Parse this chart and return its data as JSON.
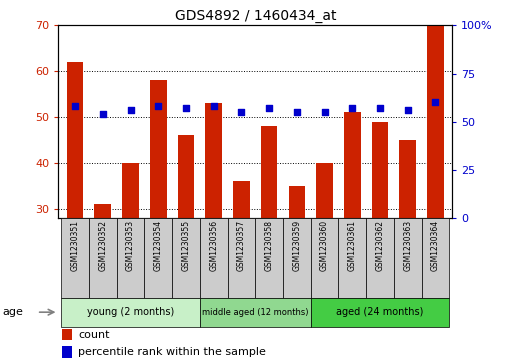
{
  "title": "GDS4892 / 1460434_at",
  "samples": [
    "GSM1230351",
    "GSM1230352",
    "GSM1230353",
    "GSM1230354",
    "GSM1230355",
    "GSM1230356",
    "GSM1230357",
    "GSM1230358",
    "GSM1230359",
    "GSM1230360",
    "GSM1230361",
    "GSM1230362",
    "GSM1230363",
    "GSM1230364"
  ],
  "counts": [
    62,
    31,
    40,
    58,
    46,
    53,
    36,
    48,
    35,
    40,
    51,
    49,
    45,
    70
  ],
  "percentiles": [
    58,
    54,
    56,
    58,
    57,
    58,
    55,
    57,
    55,
    55,
    57,
    57,
    56,
    60
  ],
  "ylim_left": [
    28,
    70
  ],
  "ylim_right": [
    0,
    100
  ],
  "yticks_left": [
    30,
    40,
    50,
    60,
    70
  ],
  "yticks_right": [
    0,
    25,
    50,
    75,
    100
  ],
  "bar_color": "#CC2200",
  "dot_color": "#0000CC",
  "groups": [
    {
      "label": "young (2 months)",
      "start": 0,
      "end": 5,
      "color": "#C8F0C8"
    },
    {
      "label": "middle aged (12 months)",
      "start": 5,
      "end": 9,
      "color": "#90D890"
    },
    {
      "label": "aged (24 months)",
      "start": 9,
      "end": 14,
      "color": "#44CC44"
    }
  ],
  "age_label": "age",
  "legend_count_label": "count",
  "legend_pct_label": "percentile rank within the sample",
  "bg_color": "#FFFFFF",
  "plot_bg": "#FFFFFF",
  "tick_label_area_color": "#CCCCCC"
}
